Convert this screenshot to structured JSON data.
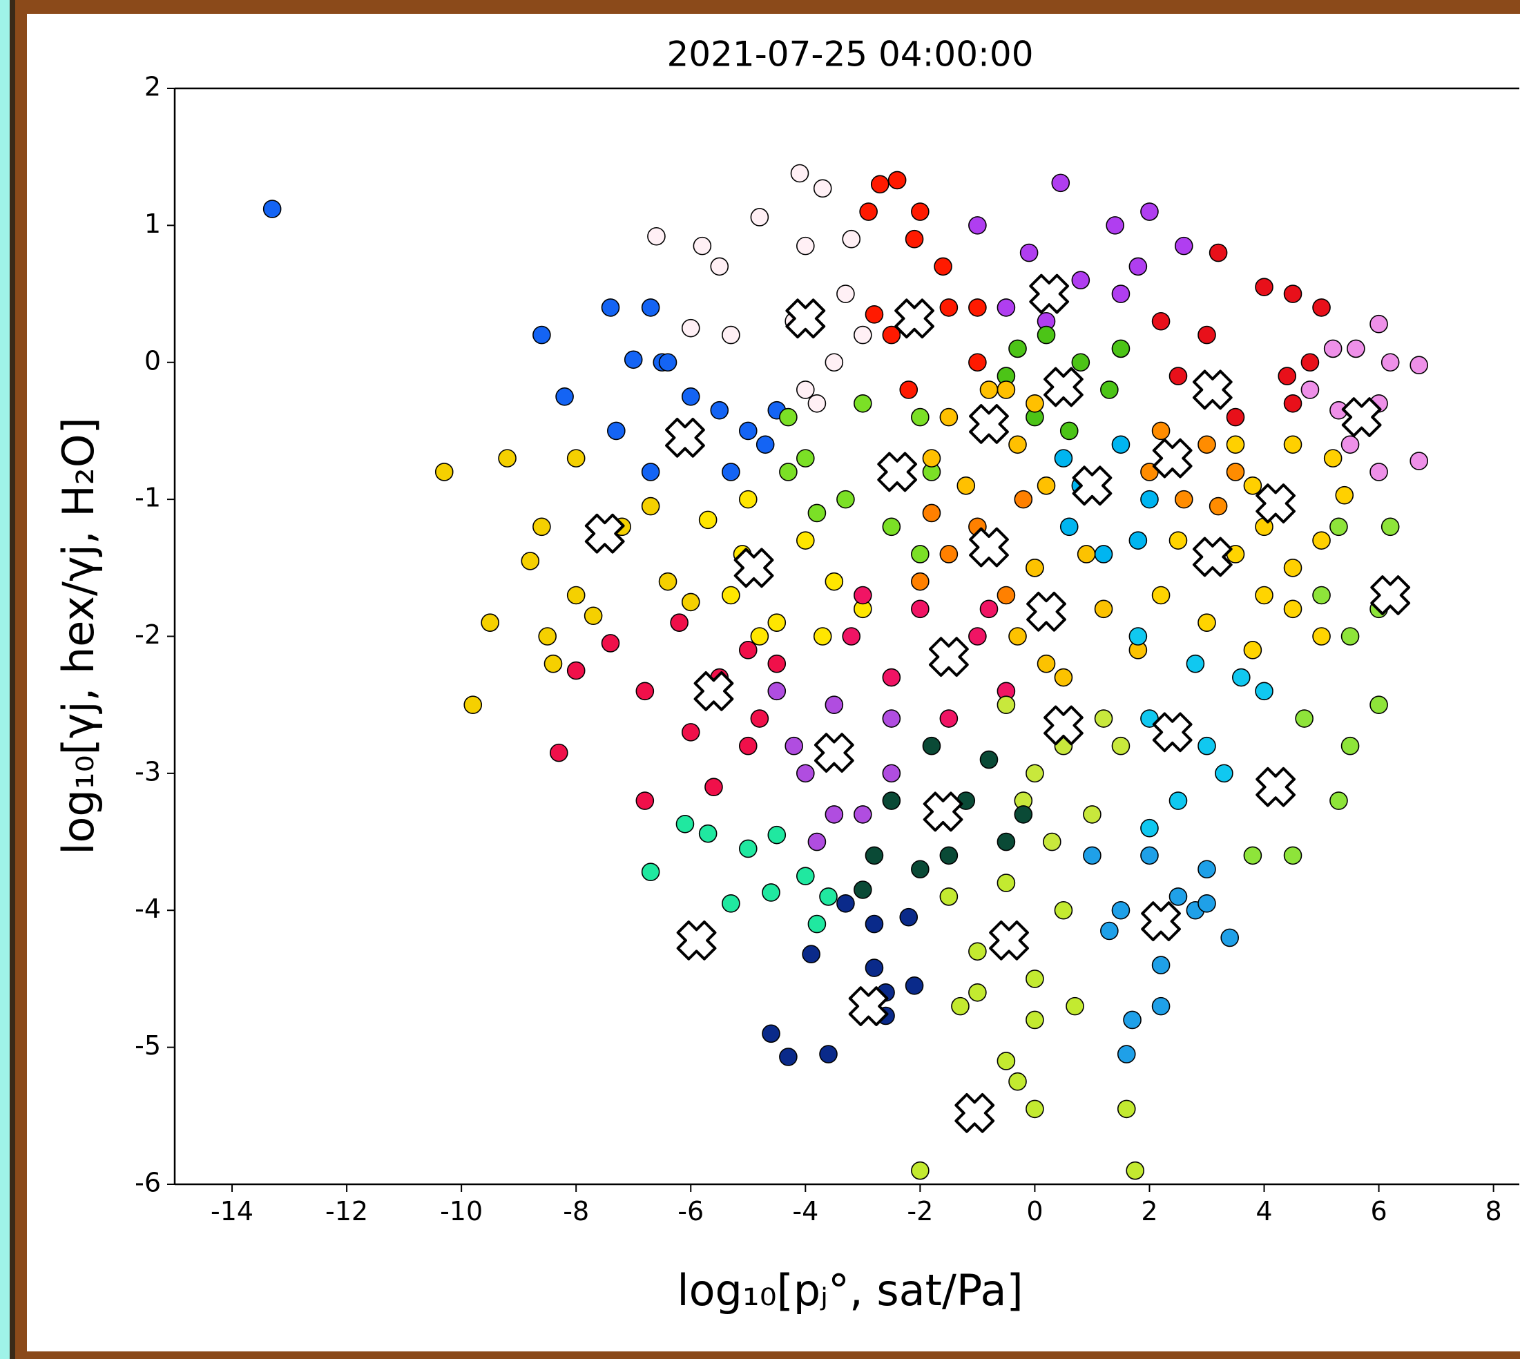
{
  "chart_data": {
    "type": "scatter",
    "title": "2021-07-25 04:00:00",
    "xlabel": "log₁₀[pⱼ°, sat/Pa]",
    "ylabel": "log₁₀[γj, hex/γj, H₂O]",
    "xlim": [
      -15,
      8.45
    ],
    "ylim": [
      -6,
      2
    ],
    "xticks": [
      -14,
      -12,
      -10,
      -8,
      -6,
      -4,
      -2,
      0,
      2,
      4,
      6,
      8
    ],
    "yticks": [
      -6,
      -5,
      -4,
      -3,
      -2,
      -1,
      0,
      1,
      2
    ],
    "series": [
      {
        "color": "#1464f4",
        "x": [
          -13.3,
          -8.6,
          -7.4,
          -6.7,
          -8.2,
          -7.0,
          -6.5,
          -7.3,
          -6.0,
          -5.5,
          -5.0,
          -4.7,
          -5.3,
          -6.7,
          -4.5,
          -6.4
        ],
        "y": [
          1.12,
          0.2,
          0.4,
          0.4,
          -0.25,
          0.02,
          0.0,
          -0.5,
          -0.25,
          -0.35,
          -0.5,
          -0.6,
          -0.8,
          -0.8,
          -0.35,
          0.0
        ]
      },
      {
        "color": "#fff0f5",
        "x": [
          -4.1,
          -3.7,
          -4.8,
          -6.6,
          -5.8,
          -5.5,
          -4.0,
          -3.2,
          -6.0,
          -5.3,
          -4.2,
          -3.5,
          -4.0,
          -3.3,
          -3.8,
          -3.0
        ],
        "y": [
          1.38,
          1.27,
          1.06,
          0.92,
          0.85,
          0.7,
          0.85,
          0.9,
          0.25,
          0.2,
          0.3,
          0.0,
          -0.2,
          0.5,
          -0.3,
          0.2
        ]
      },
      {
        "color": "#ff1a00",
        "x": [
          -2.7,
          -2.4,
          -2.9,
          -2.0,
          -2.1,
          -1.6,
          -2.5,
          -1.5,
          -1.0,
          -2.2,
          -1.0,
          -2.8
        ],
        "y": [
          1.3,
          1.33,
          1.1,
          1.1,
          0.9,
          0.7,
          0.2,
          0.4,
          0.4,
          -0.2,
          0.0,
          0.35
        ]
      },
      {
        "color": "#b03ef0",
        "x": [
          0.45,
          2.0,
          -1.0,
          -0.1,
          1.4,
          2.6,
          0.8,
          -0.5,
          1.5,
          0.2,
          1.8
        ],
        "y": [
          1.31,
          1.1,
          1.0,
          0.8,
          1.0,
          0.85,
          0.6,
          0.4,
          0.5,
          0.3,
          0.7
        ]
      },
      {
        "color": "#4cc417",
        "x": [
          -0.5,
          0.2,
          0.8,
          1.3,
          0.0,
          1.5,
          0.6,
          -0.3
        ],
        "y": [
          -0.1,
          0.2,
          0.0,
          -0.2,
          -0.4,
          0.1,
          -0.5,
          0.1
        ]
      },
      {
        "color": "#e8101a",
        "x": [
          3.2,
          4.0,
          4.5,
          5.0,
          3.0,
          4.4,
          2.5,
          3.5,
          4.5,
          2.2,
          4.8
        ],
        "y": [
          0.8,
          0.55,
          0.5,
          0.4,
          0.2,
          -0.1,
          -0.1,
          -0.4,
          -0.3,
          0.3,
          0.0
        ]
      },
      {
        "color": "#ee90e8",
        "x": [
          6.0,
          6.7,
          5.2,
          5.6,
          6.0,
          6.7,
          5.5,
          6.0,
          4.8,
          5.3,
          6.2
        ],
        "y": [
          0.28,
          -0.02,
          0.1,
          0.1,
          -0.3,
          -0.72,
          -0.6,
          -0.8,
          -0.2,
          -0.35,
          0.0
        ]
      },
      {
        "color": "#7be026",
        "x": [
          -4.3,
          -3.0,
          -2.0,
          -4.0,
          -3.3,
          -2.5,
          -1.8,
          -3.8,
          -2.0,
          -4.3
        ],
        "y": [
          -0.4,
          -0.3,
          -0.4,
          -0.7,
          -1.0,
          -1.2,
          -0.8,
          -1.1,
          -1.4,
          -0.8
        ]
      },
      {
        "color": "#ffc000",
        "x": [
          -1.5,
          -0.5,
          -1.8,
          -0.3,
          0.2,
          -1.2,
          -0.8,
          0.0
        ],
        "y": [
          -0.4,
          -0.2,
          -0.7,
          -0.6,
          -0.9,
          -0.9,
          -0.2,
          -0.3
        ]
      },
      {
        "color": "#00b5f0",
        "x": [
          0.5,
          1.5,
          1.2,
          0.6,
          2.0,
          1.8,
          0.8
        ],
        "y": [
          -0.7,
          -0.6,
          -1.4,
          -1.2,
          -1.0,
          -1.3,
          -0.9
        ]
      },
      {
        "color": "#ff8c00",
        "x": [
          2.2,
          3.0,
          2.6,
          3.5,
          2.0,
          3.2
        ],
        "y": [
          -0.5,
          -0.6,
          -1.0,
          -0.8,
          -0.8,
          -1.05
        ]
      },
      {
        "color": "#ffd000",
        "x": [
          3.5,
          4.5,
          5.2,
          4.0,
          5.0,
          3.8,
          5.4,
          4.5
        ],
        "y": [
          -0.6,
          -0.6,
          -0.7,
          -1.2,
          -1.3,
          -0.9,
          -0.97,
          -1.5
        ]
      },
      {
        "color": "#ff8000",
        "x": [
          -2.0,
          -1.0,
          -0.2,
          0.0,
          -1.5,
          -0.5,
          -1.8
        ],
        "y": [
          -1.6,
          -1.2,
          -1.0,
          -1.5,
          -1.4,
          -1.7,
          -1.1
        ]
      },
      {
        "color": "#ffe600",
        "x": [
          -5.0,
          -4.0,
          -5.3,
          -4.5,
          -3.5,
          -3.0,
          -4.8,
          -5.7,
          -3.7,
          -5.1
        ],
        "y": [
          -1.0,
          -1.3,
          -1.7,
          -1.9,
          -1.6,
          -1.8,
          -2.0,
          -1.15,
          -2.0,
          -1.4
        ]
      },
      {
        "color": "#f5d000",
        "x": [
          -10.3,
          -9.2,
          -8.0,
          -8.6,
          -8.8,
          -7.2,
          -6.7,
          -8.0,
          -9.5,
          -8.5,
          -8.4,
          -9.8,
          -6.4,
          -6.0,
          -7.7
        ],
        "y": [
          -0.8,
          -0.7,
          -0.7,
          -1.2,
          -1.45,
          -1.2,
          -1.05,
          -1.7,
          -1.9,
          -2.0,
          -2.2,
          -2.5,
          -1.6,
          -1.75,
          -1.85
        ]
      },
      {
        "color": "#fcc200",
        "x": [
          0.0,
          0.5,
          -0.3,
          1.2,
          1.8,
          0.9,
          0.2
        ],
        "y": [
          -1.5,
          -2.3,
          -2.0,
          -1.8,
          -2.1,
          -1.4,
          -2.2
        ]
      },
      {
        "color": "#ffd400",
        "x": [
          2.5,
          3.5,
          4.0,
          4.5,
          3.0,
          5.0,
          2.2,
          3.8
        ],
        "y": [
          -1.3,
          -1.4,
          -1.7,
          -1.8,
          -1.9,
          -2.0,
          -1.7,
          -2.1
        ]
      },
      {
        "color": "#8ee43a",
        "x": [
          5.3,
          6.2,
          5.0,
          5.5,
          6.0,
          5.5,
          4.7,
          3.8,
          4.5,
          5.3,
          6.0
        ],
        "y": [
          -1.2,
          -1.2,
          -1.7,
          -2.0,
          -2.5,
          -2.8,
          -2.6,
          -3.6,
          -3.6,
          -3.2,
          -1.8
        ]
      },
      {
        "color": "#f0104a",
        "x": [
          -6.2,
          -5.0,
          -6.8,
          -5.5,
          -4.5,
          -6.0,
          -4.8,
          -7.4,
          -8.3,
          -6.8,
          -5.6,
          -5.0,
          -8.0
        ],
        "y": [
          -1.9,
          -2.1,
          -2.4,
          -2.3,
          -2.2,
          -2.7,
          -2.6,
          -2.05,
          -2.85,
          -3.2,
          -3.1,
          -2.8,
          -2.25
        ]
      },
      {
        "color": "#f01464",
        "x": [
          -3.0,
          -2.0,
          -1.0,
          -0.5,
          -2.5,
          -1.5,
          -3.2,
          -0.8
        ],
        "y": [
          -1.7,
          -1.8,
          -2.0,
          -2.4,
          -2.3,
          -2.6,
          -2.0,
          -1.8
        ]
      },
      {
        "color": "#b04de0",
        "x": [
          -4.5,
          -3.5,
          -2.5,
          -4.0,
          -3.5,
          -2.5,
          -3.0,
          -4.2,
          -3.8
        ],
        "y": [
          -2.4,
          -2.5,
          -2.6,
          -3.0,
          -3.3,
          -3.0,
          -3.3,
          -2.8,
          -3.5
        ]
      },
      {
        "color": "#c8e83c",
        "x": [
          -0.5,
          0.5,
          1.2,
          0.0,
          1.0,
          1.5,
          0.3,
          -0.2
        ],
        "y": [
          -2.5,
          -2.8,
          -2.6,
          -3.0,
          -3.3,
          -2.8,
          -3.5,
          -3.2
        ]
      },
      {
        "color": "#10c8f0",
        "x": [
          1.8,
          2.8,
          3.6,
          2.0,
          3.0,
          2.5,
          3.3,
          4.0,
          2.0
        ],
        "y": [
          -2.0,
          -2.2,
          -2.3,
          -2.6,
          -2.8,
          -3.2,
          -3.0,
          -2.4,
          -3.4
        ]
      },
      {
        "color": "#0a4a36",
        "x": [
          -1.8,
          -0.8,
          -2.5,
          -1.2,
          -0.2,
          -2.8,
          -1.5,
          -3.0,
          -2.0,
          -0.5
        ],
        "y": [
          -2.8,
          -2.9,
          -3.2,
          -3.2,
          -3.3,
          -3.6,
          -3.6,
          -3.85,
          -3.7,
          -3.5
        ]
      },
      {
        "color": "#1fa0e8",
        "x": [
          1.0,
          2.0,
          3.0,
          1.5,
          2.5,
          3.4,
          1.3,
          2.2,
          2.2,
          1.7,
          1.6,
          2.8,
          3.0
        ],
        "y": [
          -3.6,
          -3.6,
          -3.7,
          -4.0,
          -3.9,
          -4.2,
          -4.15,
          -4.4,
          -4.7,
          -4.8,
          -5.05,
          -4.0,
          -3.95
        ]
      },
      {
        "color": "#c3ea30",
        "x": [
          -1.5,
          -0.5,
          0.5,
          -1.0,
          0.0,
          -1.3,
          0.0,
          -0.5,
          -0.3,
          0.0,
          1.6,
          -2.0,
          1.75,
          0.7,
          -1.0
        ],
        "y": [
          -3.9,
          -3.8,
          -4.0,
          -4.3,
          -4.5,
          -4.7,
          -4.8,
          -5.1,
          -5.25,
          -5.45,
          -5.45,
          -5.9,
          -5.9,
          -4.7,
          -4.6
        ]
      },
      {
        "color": "#20e8a0",
        "x": [
          -6.1,
          -5.7,
          -5.0,
          -6.7,
          -4.6,
          -5.3,
          -4.0,
          -3.8,
          -3.6,
          -4.5
        ],
        "y": [
          -3.37,
          -3.44,
          -3.55,
          -3.72,
          -3.87,
          -3.95,
          -3.75,
          -4.1,
          -3.9,
          -3.45
        ]
      },
      {
        "color": "#0a2a8a",
        "x": [
          -3.3,
          -2.8,
          -2.2,
          -3.9,
          -2.8,
          -2.1,
          -2.6,
          -2.6,
          -4.6,
          -4.3,
          -3.6
        ],
        "y": [
          -3.95,
          -4.1,
          -4.05,
          -4.32,
          -4.42,
          -4.55,
          -4.6,
          -4.77,
          -4.9,
          -5.07,
          -5.05
        ]
      },
      {
        "color": "#ffffff",
        "marker": "X",
        "x": [
          -6.1,
          -4.0,
          -2.1,
          0.25,
          0.5,
          3.1,
          5.7,
          -2.4,
          -0.8,
          1.0,
          2.4,
          4.2,
          -0.8,
          -4.9,
          -7.5,
          0.2,
          3.1,
          6.2,
          4.2,
          -5.6,
          -1.5,
          -3.5,
          0.5,
          2.4,
          -1.6,
          2.2,
          -0.45,
          -1.05,
          -5.9,
          -2.9
        ],
        "y": [
          -0.55,
          0.32,
          0.32,
          0.5,
          -0.18,
          -0.2,
          -0.4,
          -0.8,
          -0.45,
          -0.9,
          -0.7,
          -1.03,
          -1.35,
          -1.5,
          -1.25,
          -1.82,
          -1.42,
          -1.7,
          -3.1,
          -2.4,
          -2.15,
          -2.85,
          -2.65,
          -2.7,
          -3.28,
          -4.08,
          -4.22,
          -5.48,
          -4.22,
          -4.7
        ]
      }
    ]
  }
}
